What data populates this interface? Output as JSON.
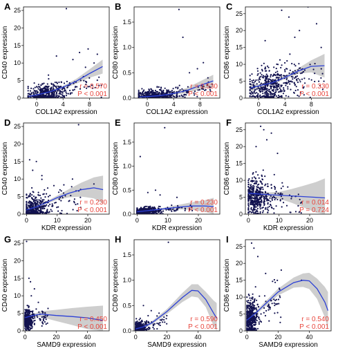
{
  "chart_data": [
    {
      "type": "scatter",
      "panel": "A",
      "xlabel": "COL1A2 expression",
      "ylabel": "CD40 expression",
      "xlim": [
        -2,
        11
      ],
      "ylim": [
        0,
        26
      ],
      "xticks": [
        0,
        4,
        8
      ],
      "yticks": [
        0,
        5,
        10,
        15,
        20,
        25
      ],
      "r": "r = 0.570",
      "p": "P < 0.001",
      "seed": 11,
      "n": 420,
      "xdist": [
        0.5,
        2.0,
        -1.3,
        10
      ],
      "ydist": [
        0.6,
        1.9
      ],
      "trend": [
        [
          -1.2,
          0.5
        ],
        [
          0,
          0.9
        ],
        [
          2,
          1.8
        ],
        [
          4,
          3.1
        ],
        [
          6,
          4.8
        ],
        [
          8,
          7.0
        ],
        [
          10,
          9.0
        ]
      ],
      "band": [
        0.8,
        0.3,
        0.3,
        0.4,
        0.7,
        1.2,
        2.0
      ],
      "outliers": [
        [
          4.5,
          25.5
        ],
        [
          7.8,
          14
        ],
        [
          6.5,
          13
        ],
        [
          3,
          12
        ],
        [
          9.2,
          12.5
        ],
        [
          5.5,
          11
        ],
        [
          8.7,
          10
        ]
      ]
    },
    {
      "type": "scatter",
      "panel": "B",
      "xlabel": "COL1A2 expression",
      "ylabel": "CD80 expression",
      "xlim": [
        -2,
        11
      ],
      "ylim": [
        0,
        1.8
      ],
      "xticks": [
        0,
        4,
        8
      ],
      "yticks": [
        0.0,
        0.5,
        1.0,
        1.5
      ],
      "r": "r = 0.530",
      "p": "P < 0.001",
      "seed": 23,
      "n": 420,
      "xdist": [
        0.5,
        2.0,
        -1.3,
        10
      ],
      "ydist": [
        0.04,
        0.08
      ],
      "trend": [
        [
          -1.2,
          0.02
        ],
        [
          0,
          0.03
        ],
        [
          2,
          0.05
        ],
        [
          4,
          0.09
        ],
        [
          6,
          0.15
        ],
        [
          8,
          0.25
        ],
        [
          10,
          0.34
        ]
      ],
      "band": [
        0.05,
        0.02,
        0.02,
        0.03,
        0.05,
        0.08,
        0.12
      ],
      "outliers": [
        [
          4.8,
          1.75
        ],
        [
          5.4,
          1.2
        ],
        [
          8.5,
          0.7
        ],
        [
          6.4,
          0.5
        ],
        [
          7.6,
          0.58
        ],
        [
          9.2,
          0.4
        ]
      ]
    },
    {
      "type": "scatter",
      "panel": "C",
      "xlabel": "COL1A2 expression",
      "ylabel": "CD86 expression",
      "xlim": [
        -2,
        11
      ],
      "ylim": [
        0,
        27
      ],
      "xticks": [
        0,
        4,
        8
      ],
      "yticks": [
        0,
        5,
        10,
        15,
        20,
        25
      ],
      "r": "r = 0.330",
      "p": "P < 0.001",
      "seed": 37,
      "n": 480,
      "xdist": [
        0.8,
        2.4,
        -1.3,
        10
      ],
      "ydist": [
        2.5,
        3.5
      ],
      "trend": [
        [
          -1.2,
          3.0
        ],
        [
          0,
          3.6
        ],
        [
          2,
          4.5
        ],
        [
          4,
          6.1
        ],
        [
          6,
          8.0
        ],
        [
          8,
          9.4
        ],
        [
          10,
          9.6
        ]
      ],
      "band": [
        1.2,
        0.5,
        0.4,
        0.5,
        0.8,
        1.8,
        3.5
      ],
      "outliers": [
        [
          3.5,
          26
        ],
        [
          7.5,
          27
        ],
        [
          4.6,
          24
        ],
        [
          8.8,
          22
        ],
        [
          1,
          17
        ],
        [
          5.5,
          18
        ],
        [
          6.2,
          20
        ],
        [
          9.5,
          15
        ]
      ]
    },
    {
      "type": "scatter",
      "panel": "D",
      "xlabel": "KDR expression",
      "ylabel": "CD40 expression",
      "xlim": [
        -1,
        27
      ],
      "ylim": [
        0,
        26
      ],
      "xticks": [
        0,
        10,
        20
      ],
      "yticks": [
        0,
        5,
        10,
        15,
        20,
        25
      ],
      "r": "r = 0.230",
      "p": "P < 0.001",
      "seed": 41,
      "n": 420,
      "xdist": [
        1.0,
        2.8,
        0,
        18
      ],
      "ydist": [
        1.2,
        2.5
      ],
      "trend": [
        [
          0,
          1.2
        ],
        [
          3,
          2.0
        ],
        [
          6,
          3.1
        ],
        [
          10,
          4.7
        ],
        [
          14,
          6.0
        ],
        [
          18,
          7.0
        ],
        [
          22,
          7.5
        ],
        [
          25,
          7.0
        ]
      ],
      "band": [
        0.6,
        0.3,
        0.3,
        0.6,
        1.2,
        2.0,
        3.0,
        4.0
      ],
      "outliers": [
        [
          17,
          25.5
        ],
        [
          1,
          15.5
        ],
        [
          3.2,
          15
        ],
        [
          2,
          12.5
        ],
        [
          5,
          11
        ],
        [
          15,
          10
        ],
        [
          22,
          8.6
        ]
      ]
    },
    {
      "type": "scatter",
      "panel": "E",
      "xlabel": "KDR expression",
      "ylabel": "CD80 expression",
      "xlim": [
        -1,
        27
      ],
      "ylim": [
        0,
        1.9
      ],
      "xticks": [
        0,
        10,
        20
      ],
      "yticks": [
        0.0,
        0.5,
        1.0,
        1.5
      ],
      "r": "r = 0.230",
      "p": "P < 0.001",
      "seed": 53,
      "n": 420,
      "xdist": [
        1.0,
        2.8,
        0,
        18
      ],
      "ydist": [
        0.05,
        0.05
      ],
      "trend": [
        [
          0,
          0.05
        ],
        [
          3,
          0.07
        ],
        [
          6,
          0.09
        ],
        [
          10,
          0.12
        ],
        [
          14,
          0.15
        ],
        [
          18,
          0.17
        ],
        [
          22,
          0.17
        ],
        [
          25,
          0.16
        ]
      ],
      "band": [
        0.03,
        0.015,
        0.015,
        0.03,
        0.05,
        0.08,
        0.12,
        0.18
      ],
      "outliers": [
        [
          9,
          1.8
        ],
        [
          1,
          1.2
        ],
        [
          6,
          0.5
        ],
        [
          3.5,
          0.45
        ],
        [
          7.5,
          0.4
        ],
        [
          13,
          0.35
        ]
      ]
    },
    {
      "type": "scatter",
      "panel": "F",
      "xlabel": "KDR expression",
      "ylabel": "CD86 expression",
      "xlim": [
        -1,
        27
      ],
      "ylim": [
        0,
        27
      ],
      "xticks": [
        0,
        10,
        20
      ],
      "yticks": [
        0,
        5,
        10,
        15,
        20,
        25
      ],
      "r": "r = 0.014",
      "p": "P = 0.724",
      "seed": 67,
      "n": 480,
      "xdist": [
        1.2,
        2.8,
        0,
        18
      ],
      "ydist": [
        4.5,
        3.2
      ],
      "trend": [
        [
          0,
          6.2
        ],
        [
          3,
          6.0
        ],
        [
          6,
          5.8
        ],
        [
          10,
          5.6
        ],
        [
          14,
          5.4
        ],
        [
          18,
          5.2
        ],
        [
          22,
          5.0
        ],
        [
          25,
          4.8
        ]
      ],
      "band": [
        1.5,
        0.6,
        0.6,
        1.0,
        2.0,
        3.2,
        4.5,
        5.8
      ],
      "outliers": [
        [
          4,
          26
        ],
        [
          5,
          25
        ],
        [
          7.5,
          24
        ],
        [
          2.5,
          20
        ],
        [
          9.5,
          18
        ],
        [
          6,
          22
        ]
      ]
    },
    {
      "type": "scatter",
      "panel": "G",
      "xlabel": "SAMD9 expression",
      "ylabel": "CD40 expression",
      "xlim": [
        -1,
        54
      ],
      "ylim": [
        0,
        26
      ],
      "xticks": [
        0,
        20,
        40
      ],
      "yticks": [
        0,
        5,
        10,
        15,
        20,
        25
      ],
      "r": "r = 0.450",
      "p": "P < 0.001",
      "seed": 71,
      "n": 420,
      "xdist": [
        0.5,
        2.0,
        0,
        15
      ],
      "ydist": [
        2.0,
        1.8
      ],
      "trend": [
        [
          0,
          3.8
        ],
        [
          5,
          4.4
        ],
        [
          10,
          4.8
        ],
        [
          20,
          4.4
        ],
        [
          30,
          4.1
        ],
        [
          40,
          3.7
        ],
        [
          50,
          3.0
        ]
      ],
      "band": [
        0.8,
        0.4,
        0.8,
        1.6,
        2.4,
        3.2,
        4.2
      ],
      "outliers": [
        [
          1,
          25.5
        ],
        [
          2.5,
          15
        ],
        [
          3.5,
          14
        ],
        [
          6,
          12
        ],
        [
          4,
          10
        ]
      ]
    },
    {
      "type": "scatter",
      "panel": "H",
      "xlabel": "SAMD9 expression",
      "ylabel": "CD80 expression",
      "xlim": [
        -1,
        54
      ],
      "ylim": [
        0,
        1.8
      ],
      "xticks": [
        0,
        20,
        40
      ],
      "yticks": [
        0.0,
        0.5,
        1.0,
        1.5
      ],
      "r": "r = 0.590",
      "p": "P < 0.001",
      "seed": 83,
      "n": 420,
      "xdist": [
        1.0,
        2.5,
        0,
        20
      ],
      "ydist": [
        0.06,
        0.08
      ],
      "trend": [
        [
          0,
          0.04
        ],
        [
          5,
          0.08
        ],
        [
          10,
          0.15
        ],
        [
          20,
          0.38
        ],
        [
          30,
          0.66
        ],
        [
          36,
          0.8
        ],
        [
          40,
          0.79
        ],
        [
          45,
          0.62
        ],
        [
          50,
          0.35
        ],
        [
          52,
          0.25
        ]
      ],
      "band": [
        0.03,
        0.02,
        0.03,
        0.05,
        0.09,
        0.12,
        0.13,
        0.15,
        0.25,
        0.3
      ],
      "outliers": [
        [
          21,
          1.75
        ],
        [
          5,
          0.5
        ],
        [
          10,
          0.4
        ],
        [
          15,
          0.35
        ],
        [
          8,
          0.3
        ]
      ]
    },
    {
      "type": "scatter",
      "panel": "I",
      "xlabel": "SAMD9 expression",
      "ylabel": "CD86 expression",
      "xlim": [
        -1,
        54
      ],
      "ylim": [
        0,
        27
      ],
      "xticks": [
        0,
        20,
        40
      ],
      "yticks": [
        0,
        5,
        10,
        15,
        20,
        25
      ],
      "r": "r = 0.540",
      "p": "P < 0.001",
      "seed": 97,
      "n": 480,
      "xdist": [
        1.2,
        2.5,
        0,
        22
      ],
      "ydist": [
        3.5,
        3.5
      ],
      "trend": [
        [
          0,
          3.2
        ],
        [
          5,
          5.0
        ],
        [
          10,
          7.2
        ],
        [
          20,
          11.5
        ],
        [
          30,
          14.3
        ],
        [
          36,
          15.0
        ],
        [
          40,
          14.8
        ],
        [
          45,
          12.5
        ],
        [
          50,
          8.5
        ],
        [
          52,
          6.0
        ]
      ],
      "band": [
        0.6,
        0.5,
        0.7,
        1.0,
        1.5,
        2.0,
        2.4,
        3.0,
        4.5,
        5.5
      ],
      "outliers": [
        [
          3,
          26
        ],
        [
          4.5,
          24.5
        ],
        [
          7,
          22
        ],
        [
          22,
          18
        ],
        [
          35,
          15
        ],
        [
          12,
          17
        ]
      ]
    }
  ]
}
